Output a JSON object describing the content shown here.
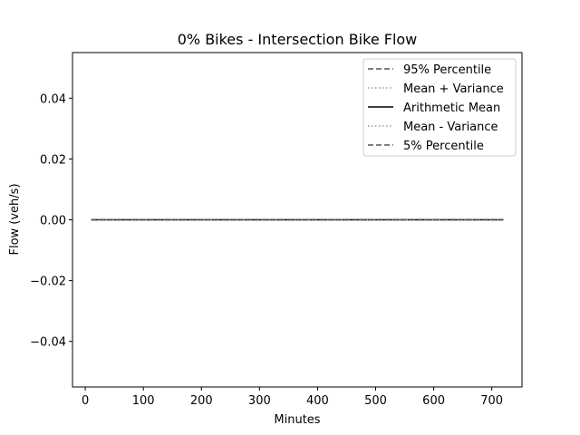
{
  "chart_data": {
    "type": "line",
    "title": "0% Bikes - Intersection Bike Flow",
    "xlabel": "Minutes",
    "ylabel": "Flow (veh/s)",
    "xlim": [
      -22,
      752
    ],
    "ylim": [
      -0.055,
      0.055
    ],
    "xticks": [
      0,
      100,
      200,
      300,
      400,
      500,
      600,
      700
    ],
    "yticks": [
      -0.04,
      -0.02,
      0.0,
      0.02,
      0.04
    ],
    "ytick_labels": [
      "−0.04",
      "−0.02",
      "0.00",
      "0.02",
      "0.04"
    ],
    "grid": false,
    "legend_position": "top-right",
    "x": [
      10,
      720
    ],
    "series": [
      {
        "name": "95% Percentile",
        "values": [
          0,
          0
        ],
        "color": "#555555",
        "style": "dashed"
      },
      {
        "name": "Mean + Variance",
        "values": [
          0,
          0
        ],
        "color": "#999999",
        "style": "dotted"
      },
      {
        "name": "Arithmetic Mean",
        "values": [
          0,
          0
        ],
        "color": "#000000",
        "style": "solid"
      },
      {
        "name": "Mean - Variance",
        "values": [
          0,
          0
        ],
        "color": "#999999",
        "style": "dotted"
      },
      {
        "name": "5% Percentile",
        "values": [
          0,
          0
        ],
        "color": "#555555",
        "style": "dashed"
      }
    ]
  }
}
